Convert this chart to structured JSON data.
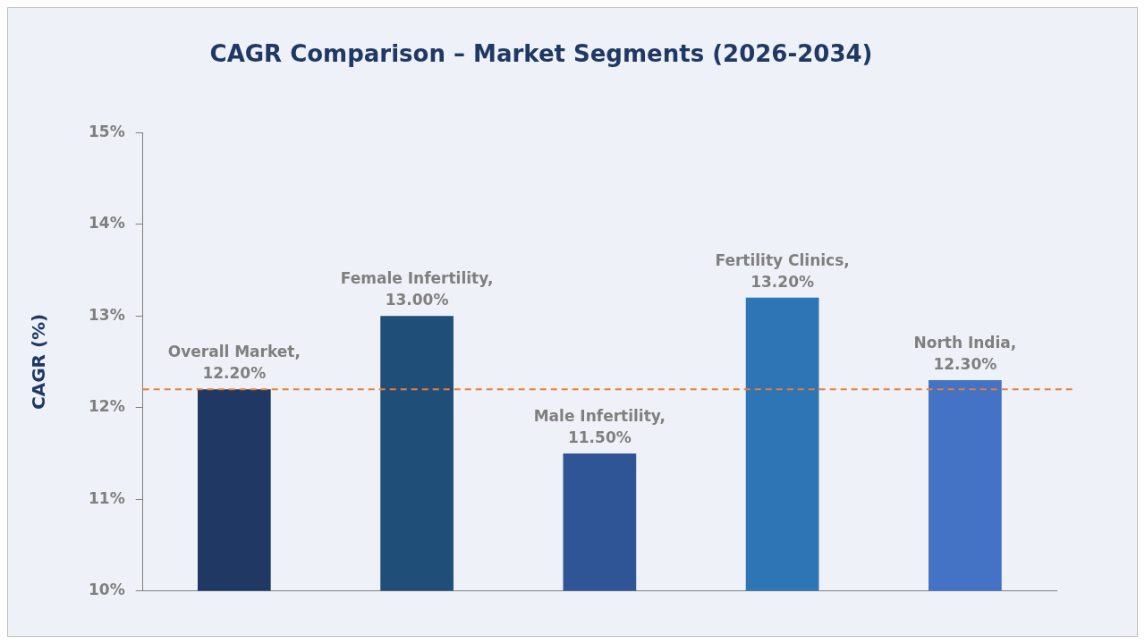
{
  "chart_data": {
    "type": "bar",
    "title": "CAGR Comparison – Market Segments (2026-2034)",
    "ylabel": "CAGR (%)",
    "categories": [
      null,
      null,
      null,
      null,
      null
    ],
    "values": [
      12.2,
      13.0,
      11.5,
      13.2,
      12.3
    ],
    "colors": [
      "#1f3864",
      "#1f4e79",
      "#2f5597",
      "#2e75b6",
      "#4472c4"
    ],
    "value_labels": [
      "Overall Market, 12.20%",
      "Female Infertility, 13.00%",
      "Male Infertility, 11.50%",
      "Fertility Clinics, 13.20%",
      "North India, 12.30%"
    ],
    "ylim": [
      10,
      15
    ],
    "yticks": [
      {
        "value": 10,
        "label": "10%"
      },
      {
        "value": 11,
        "label": "11%"
      },
      {
        "value": 12,
        "label": "12%"
      },
      {
        "value": 13,
        "label": "13%"
      },
      {
        "value": 14,
        "label": "14%"
      },
      {
        "value": 15,
        "label": "15%"
      }
    ],
    "ref_lines": [
      {
        "axis": "y",
        "value": 12.2,
        "color": "#ed7d31",
        "line_style": "dashed"
      }
    ],
    "grid": false,
    "legend": false
  }
}
